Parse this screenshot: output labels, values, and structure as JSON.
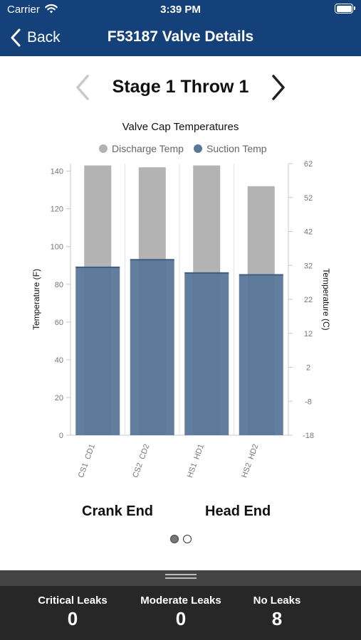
{
  "status_bar": {
    "carrier": "Carrier",
    "time": "3:39 PM"
  },
  "nav": {
    "back_label": "Back",
    "title": "F53187 Valve Details"
  },
  "stage": {
    "title": "Stage 1 Throw 1"
  },
  "chart_data": {
    "type": "bar",
    "title": "Valve Cap Temperatures",
    "categories": [
      "CS1 CD1",
      "CS2 CD2",
      "HS1 HD1",
      "HS2 HD2"
    ],
    "series": [
      {
        "name": "Discharge Temp",
        "values": [
          143,
          142,
          143,
          132
        ],
        "color": "#b3b3b3"
      },
      {
        "name": "Suction Temp",
        "values": [
          89,
          93,
          86,
          85
        ],
        "color": "#5a7799"
      }
    ],
    "ylabel": "Temperature (F)",
    "ylabel_right": "Temperature (C)",
    "ylim": [
      0,
      144
    ],
    "yticks": [
      0,
      20,
      40,
      60,
      80,
      100,
      120,
      140
    ],
    "yticks_right": [
      62,
      52,
      42,
      32,
      22,
      12,
      2,
      -8,
      -18
    ],
    "legend_position": "top-center",
    "legend_marker_colors": [
      "#b3b3b3",
      "#5a7799"
    ]
  },
  "ends": {
    "crank": "Crank End",
    "head": "Head End"
  },
  "stats": [
    {
      "label": "Critical Leaks",
      "value": "0"
    },
    {
      "label": "Moderate Leaks",
      "value": "0"
    },
    {
      "label": "No Leaks",
      "value": "8"
    }
  ]
}
